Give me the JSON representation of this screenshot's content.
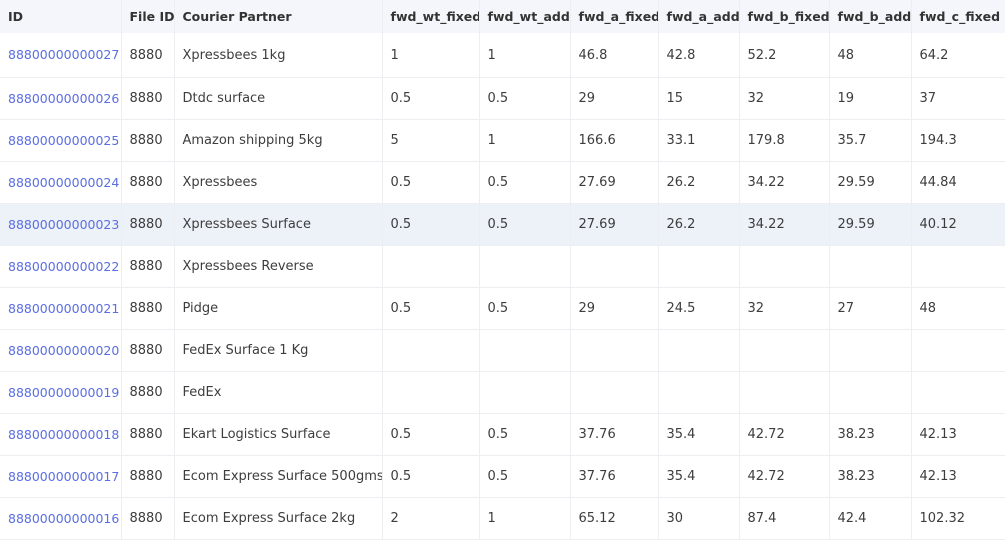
{
  "table": {
    "columns": [
      "ID",
      "File ID",
      "Courier Partner",
      "fwd_wt_fixed",
      "fwd_wt_add",
      "fwd_a_fixed",
      "fwd_a_add",
      "fwd_b_fixed",
      "fwd_b_add",
      "fwd_c_fixed"
    ],
    "selected_row_index": 4,
    "colors": {
      "link": "#5b6ee1",
      "header_bg": "#f4f6fb",
      "selected_row_bg": "#edf1f8"
    },
    "rows": [
      {
        "id": "88800000000027",
        "file_id": "8880",
        "courier": "Xpressbees 1kg",
        "fwd_wt_fixed": "1",
        "fwd_wt_add": "1",
        "fwd_a_fixed": "46.8",
        "fwd_a_add": "42.8",
        "fwd_b_fixed": "52.2",
        "fwd_b_add": "48",
        "fwd_c_fixed": "64.2"
      },
      {
        "id": "88800000000026",
        "file_id": "8880",
        "courier": "Dtdc surface",
        "fwd_wt_fixed": "0.5",
        "fwd_wt_add": "0.5",
        "fwd_a_fixed": "29",
        "fwd_a_add": "15",
        "fwd_b_fixed": "32",
        "fwd_b_add": "19",
        "fwd_c_fixed": "37"
      },
      {
        "id": "88800000000025",
        "file_id": "8880",
        "courier": "Amazon shipping 5kg",
        "fwd_wt_fixed": "5",
        "fwd_wt_add": "1",
        "fwd_a_fixed": "166.6",
        "fwd_a_add": "33.1",
        "fwd_b_fixed": "179.8",
        "fwd_b_add": "35.7",
        "fwd_c_fixed": "194.3"
      },
      {
        "id": "88800000000024",
        "file_id": "8880",
        "courier": "Xpressbees",
        "fwd_wt_fixed": "0.5",
        "fwd_wt_add": "0.5",
        "fwd_a_fixed": "27.69",
        "fwd_a_add": "26.2",
        "fwd_b_fixed": "34.22",
        "fwd_b_add": "29.59",
        "fwd_c_fixed": "44.84"
      },
      {
        "id": "88800000000023",
        "file_id": "8880",
        "courier": "Xpressbees Surface",
        "fwd_wt_fixed": "0.5",
        "fwd_wt_add": "0.5",
        "fwd_a_fixed": "27.69",
        "fwd_a_add": "26.2",
        "fwd_b_fixed": "34.22",
        "fwd_b_add": "29.59",
        "fwd_c_fixed": "40.12"
      },
      {
        "id": "88800000000022",
        "file_id": "8880",
        "courier": "Xpressbees Reverse",
        "fwd_wt_fixed": "",
        "fwd_wt_add": "",
        "fwd_a_fixed": "",
        "fwd_a_add": "",
        "fwd_b_fixed": "",
        "fwd_b_add": "",
        "fwd_c_fixed": ""
      },
      {
        "id": "88800000000021",
        "file_id": "8880",
        "courier": "Pidge",
        "fwd_wt_fixed": "0.5",
        "fwd_wt_add": "0.5",
        "fwd_a_fixed": "29",
        "fwd_a_add": "24.5",
        "fwd_b_fixed": "32",
        "fwd_b_add": "27",
        "fwd_c_fixed": "48"
      },
      {
        "id": "88800000000020",
        "file_id": "8880",
        "courier": "FedEx Surface 1 Kg",
        "fwd_wt_fixed": "",
        "fwd_wt_add": "",
        "fwd_a_fixed": "",
        "fwd_a_add": "",
        "fwd_b_fixed": "",
        "fwd_b_add": "",
        "fwd_c_fixed": ""
      },
      {
        "id": "88800000000019",
        "file_id": "8880",
        "courier": "FedEx",
        "fwd_wt_fixed": "",
        "fwd_wt_add": "",
        "fwd_a_fixed": "",
        "fwd_a_add": "",
        "fwd_b_fixed": "",
        "fwd_b_add": "",
        "fwd_c_fixed": ""
      },
      {
        "id": "88800000000018",
        "file_id": "8880",
        "courier": "Ekart Logistics Surface",
        "fwd_wt_fixed": "0.5",
        "fwd_wt_add": "0.5",
        "fwd_a_fixed": "37.76",
        "fwd_a_add": "35.4",
        "fwd_b_fixed": "42.72",
        "fwd_b_add": "38.23",
        "fwd_c_fixed": "42.13"
      },
      {
        "id": "88800000000017",
        "file_id": "8880",
        "courier": "Ecom Express Surface 500gms",
        "fwd_wt_fixed": "0.5",
        "fwd_wt_add": "0.5",
        "fwd_a_fixed": "37.76",
        "fwd_a_add": "35.4",
        "fwd_b_fixed": "42.72",
        "fwd_b_add": "38.23",
        "fwd_c_fixed": "42.13"
      },
      {
        "id": "88800000000016",
        "file_id": "8880",
        "courier": "Ecom Express Surface 2kg",
        "fwd_wt_fixed": "2",
        "fwd_wt_add": "1",
        "fwd_a_fixed": "65.12",
        "fwd_a_add": "30",
        "fwd_b_fixed": "87.4",
        "fwd_b_add": "42.4",
        "fwd_c_fixed": "102.32"
      }
    ]
  }
}
